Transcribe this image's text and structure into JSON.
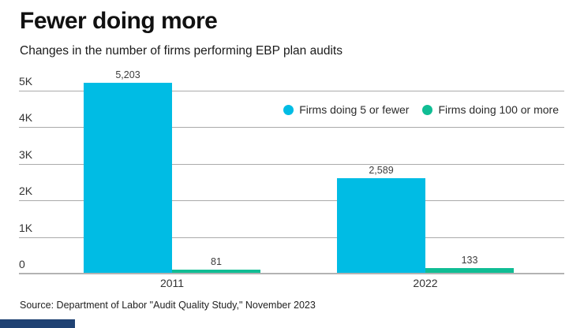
{
  "header": {
    "title": "Fewer doing more",
    "subtitle": "Changes in the number of firms performing EBP plan audits"
  },
  "chart_data": {
    "type": "bar",
    "categories": [
      "2011",
      "2022"
    ],
    "series": [
      {
        "name": "Firms doing 5 or fewer",
        "color": "#00BCE4",
        "values": [
          5203,
          2589
        ],
        "value_labels": [
          "5,203",
          "2,589"
        ]
      },
      {
        "name": "Firms doing 100 or more",
        "color": "#10BD94",
        "values": [
          81,
          133
        ],
        "value_labels": [
          "81",
          "133"
        ]
      }
    ],
    "y_ticks": [
      {
        "value": 0,
        "label": "0"
      },
      {
        "value": 1000,
        "label": "1K"
      },
      {
        "value": 2000,
        "label": "2K"
      },
      {
        "value": 3000,
        "label": "3K"
      },
      {
        "value": 4000,
        "label": "4K"
      },
      {
        "value": 5000,
        "label": "5K"
      }
    ],
    "ylim": [
      0,
      5000
    ],
    "grid": true,
    "legend_position": "top-right"
  },
  "source": "Source: Department of Labor \"Audit Quality Study,\" November 2023",
  "colors": {
    "series_1": "#00BCE4",
    "series_2": "#10BD94",
    "grid": "#ABABAB",
    "baseline": "#B3B3B3",
    "brand_bar": "#1F4273"
  }
}
